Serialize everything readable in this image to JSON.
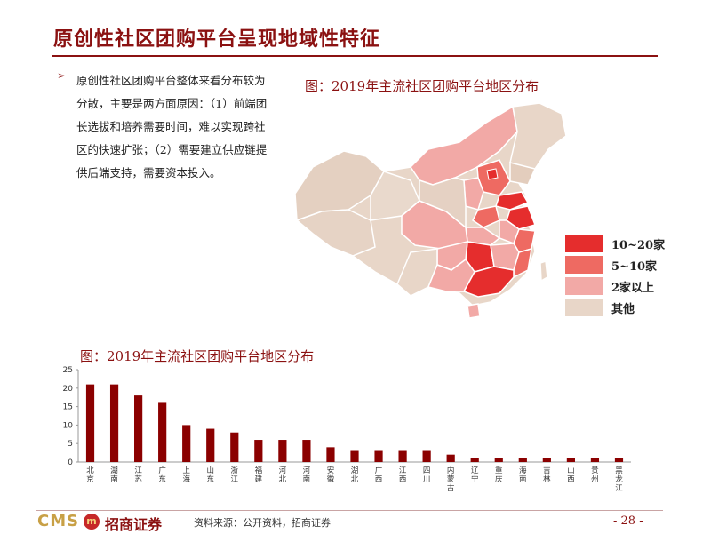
{
  "header": {
    "title": "原创性社区团购平台呈现地域性特征"
  },
  "bullet": {
    "symbol": "➢",
    "text": "原创性社区团购平台整体来看分布较为分散，主要是两方面原因：（1）前端团长选拔和培养需要时间，难以实现跨社区的快速扩张；（2）需要建立供应链提供后端支持，需要资本投入。"
  },
  "map": {
    "caption": "图：2019年主流社区团购平台地区分布",
    "legend": [
      {
        "label": "10~20家",
        "color": "#e52d2d"
      },
      {
        "label": "5~10家",
        "color": "#ee6a62"
      },
      {
        "label": "2家以上",
        "color": "#f2a9a6"
      },
      {
        "label": "其他",
        "color": "#e8d6c8"
      }
    ]
  },
  "chart_data": {
    "type": "bar",
    "title": "图：2019年主流社区团购平台地区分布",
    "categories": [
      "北京",
      "湖南",
      "江苏",
      "广东",
      "上海",
      "山东",
      "浙江",
      "福建",
      "河北",
      "河南",
      "安徽",
      "湖北",
      "广西",
      "江西",
      "四川",
      "内蒙古",
      "辽宁",
      "重庆",
      "海南",
      "吉林",
      "山西",
      "贵州",
      "黑龙江"
    ],
    "values": [
      21,
      21,
      18,
      16,
      10,
      9,
      8,
      6,
      6,
      6,
      4,
      3,
      3,
      3,
      3,
      2,
      1,
      1,
      1,
      1,
      1,
      1,
      1
    ],
    "ylim": [
      0,
      25
    ],
    "yticks": [
      0,
      5,
      10,
      15,
      20,
      25
    ],
    "bar_color": "#8b0000",
    "grid": false
  },
  "footer": {
    "logo_text": "CMS",
    "logo_mark": "m",
    "logo_name": "招商证券",
    "source": "资料来源：公开资料，招商证券",
    "page": "- 28 -"
  }
}
